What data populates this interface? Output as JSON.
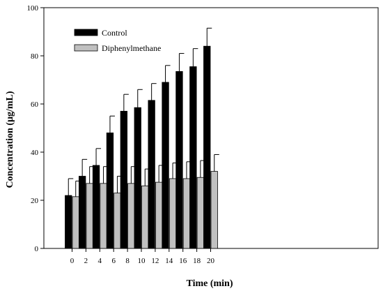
{
  "chart_data": {
    "type": "bar",
    "title": "",
    "xlabel": "Time (min)",
    "ylabel": "Concentration (µg/mL)",
    "ylim": [
      0,
      100
    ],
    "yticks": [
      "0",
      "20",
      "40",
      "60",
      "80",
      "100"
    ],
    "categories": [
      "0",
      "2",
      "4",
      "6",
      "8",
      "10",
      "12",
      "14",
      "16",
      "18",
      "20"
    ],
    "legend_position": "top-left",
    "grid": false,
    "series": [
      {
        "name": "Control",
        "color": "#000000",
        "values": [
          22,
          30,
          34.5,
          48,
          57,
          58.5,
          61.5,
          69,
          73.5,
          75.5,
          84
        ],
        "error": [
          7,
          7,
          7,
          7,
          7,
          7.5,
          7,
          7,
          7.5,
          7.5,
          7.5
        ]
      },
      {
        "name": "Diphenylmethane",
        "color": "#c0c0c0",
        "values": [
          21.5,
          27,
          27,
          23,
          27,
          26,
          27.5,
          29,
          29,
          29.5,
          32
        ],
        "error": [
          6.5,
          7,
          7,
          7,
          7,
          7,
          7,
          6.5,
          7,
          7,
          7
        ]
      }
    ]
  }
}
